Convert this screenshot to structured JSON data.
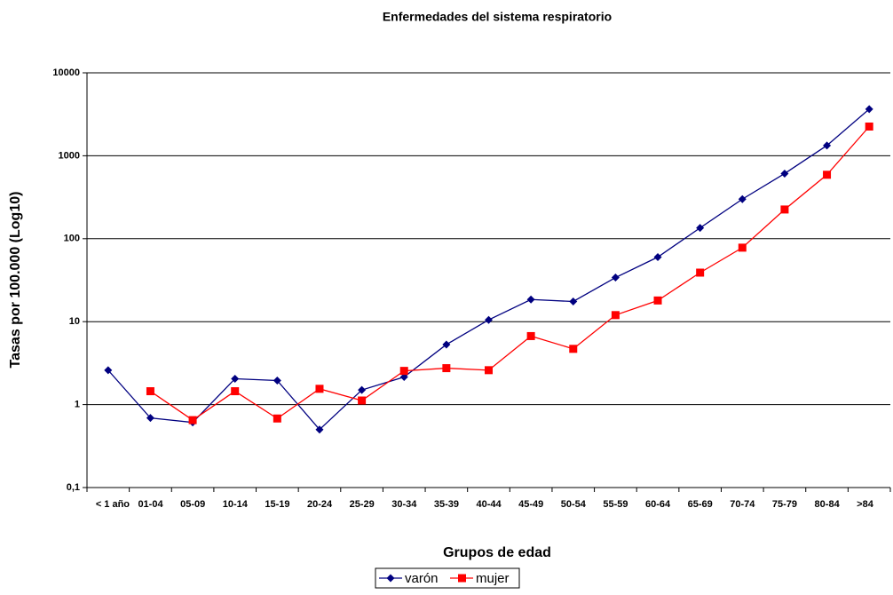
{
  "chart_data": {
    "type": "line",
    "title": "Enfermedades del sistema respiratorio",
    "x_label": "Grupos de edad",
    "y_label": "Tasas por 100.000 (Log10)",
    "log_scale": true,
    "grid": true,
    "categories": [
      "< 1 año",
      "01-04",
      "05-09",
      "10-14",
      "15-19",
      "20-24",
      "25-29",
      "30-34",
      "35-39",
      "40-44",
      "45-49",
      "50-54",
      "55-59",
      "60-64",
      "65-69",
      "70-74",
      "75-79",
      "80-84",
      ">84"
    ],
    "series": [
      {
        "name": "varón",
        "color": "#000080",
        "marker": "diamond",
        "values": [
          2.6,
          0.69,
          0.61,
          2.05,
          1.95,
          0.5,
          1.5,
          2.15,
          5.3,
          10.5,
          18.5,
          17.5,
          34,
          60,
          135,
          300,
          610,
          1330,
          3650
        ]
      },
      {
        "name": "mujer",
        "color": "#ff0000",
        "marker": "square",
        "values": [
          null,
          1.45,
          0.65,
          1.45,
          0.68,
          1.55,
          1.12,
          2.55,
          2.75,
          2.6,
          6.7,
          4.7,
          12,
          18,
          39,
          78,
          225,
          590,
          2250
        ]
      }
    ],
    "ylim": [
      0.1,
      10000
    ],
    "yticks": [
      {
        "value": 0.1,
        "label": "0,1"
      },
      1,
      10,
      100,
      1000,
      10000
    ]
  }
}
